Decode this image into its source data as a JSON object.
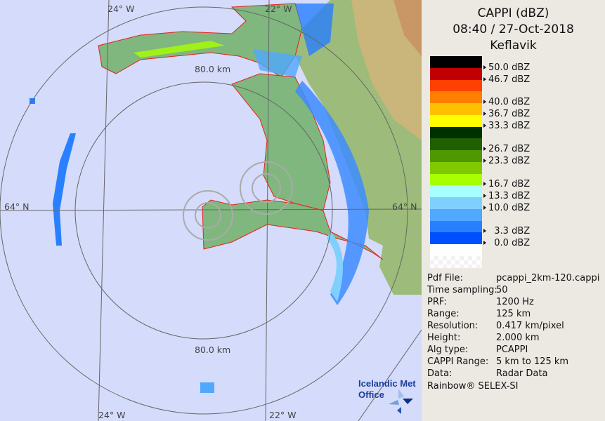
{
  "map": {
    "lat_labels": [
      "64° N",
      "64° N"
    ],
    "lon_labels": [
      "24° W",
      "22° W",
      "24° W",
      "22° W"
    ],
    "range_labels": [
      "80.0 km",
      "80.0 km"
    ],
    "background_color": "#d5dbfa",
    "land_color": "#7fb77e",
    "coast_color": "#e8201c",
    "logo": "Icelandic Met Office"
  },
  "panel": {
    "product": "CAPPI (dBZ)",
    "datetime": "08:40 / 27-Oct-2018",
    "site": "Keflavik",
    "legend_colors": [
      "#000000",
      "#c00000",
      "#ff4000",
      "#ff8000",
      "#ffc000",
      "#ffff00",
      "#003000",
      "#206000",
      "#509800",
      "#80c800",
      "#a8ff00",
      "#a8ffff",
      "#80d0ff",
      "#50a8ff",
      "#2880ff",
      "#0050ff",
      "#ffffff",
      "checker"
    ],
    "legend_labels": [
      "50.0 dBZ",
      "46.7 dBZ",
      "40.0 dBZ",
      "36.7 dBZ",
      "33.3 dBZ",
      "26.7 dBZ",
      "23.3 dBZ",
      "16.7 dBZ",
      "13.3 dBZ",
      "10.0 dBZ",
      "  3.3 dBZ",
      "  0.0 dBZ"
    ],
    "info": [
      {
        "k": "Pdf File:",
        "v": "pcappi_2km-120.cappi"
      },
      {
        "k": "Time sampling:",
        "v": "50"
      },
      {
        "k": "PRF:",
        "v": "1200 Hz"
      },
      {
        "k": "Range:",
        "v": "125 km"
      },
      {
        "k": "Resolution:",
        "v": "0.417 km/pixel"
      },
      {
        "k": "Height:",
        "v": "2.000 km"
      },
      {
        "k": "Alg type:",
        "v": "PCAPPI"
      },
      {
        "k": "CAPPI Range:",
        "v": "5 km to 125 km"
      },
      {
        "k": "Data:",
        "v": "Radar Data"
      }
    ],
    "footer": "Rainbow® SELEX-SI"
  }
}
